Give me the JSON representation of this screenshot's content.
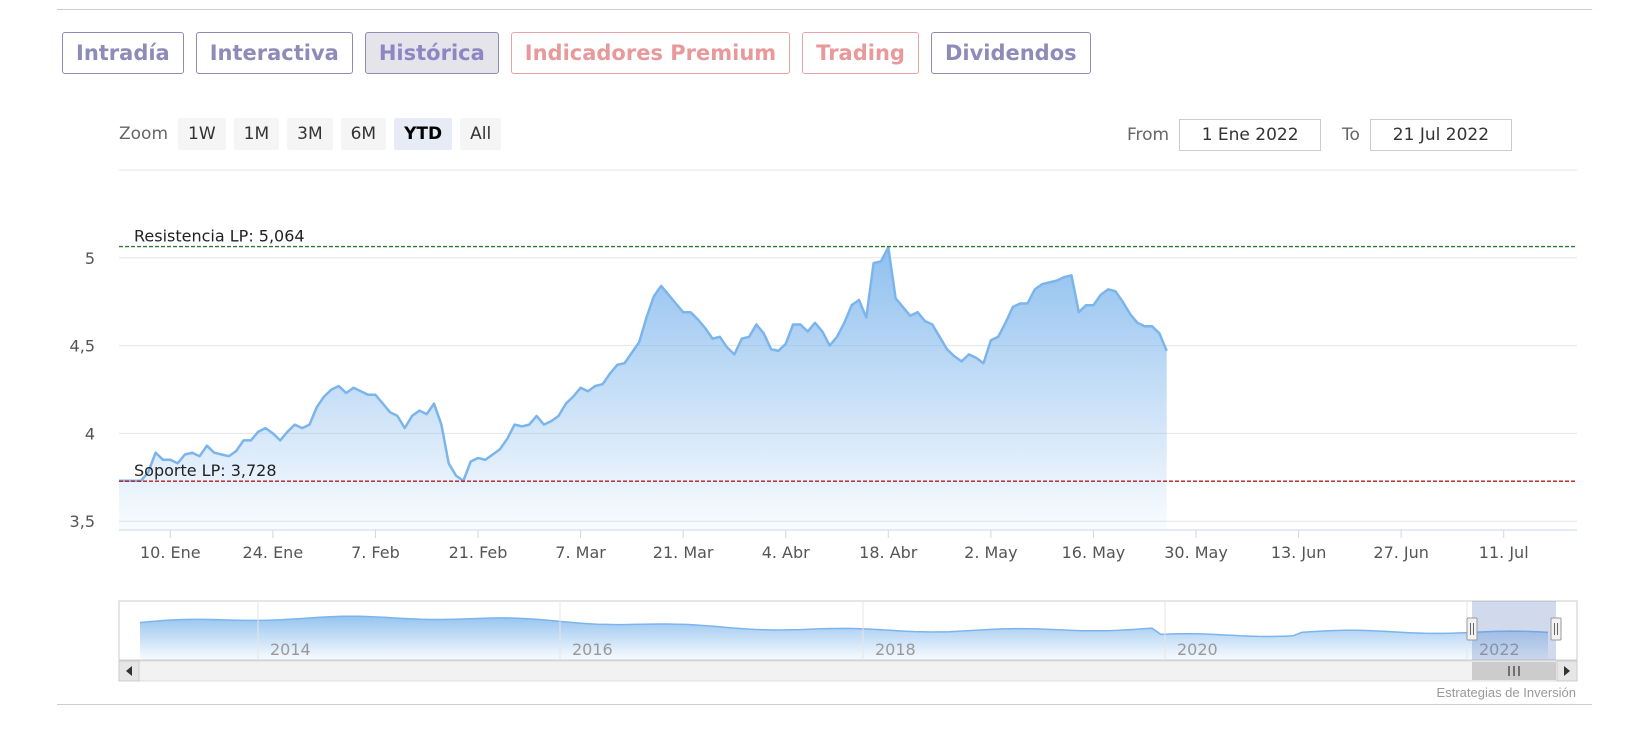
{
  "tabs": [
    {
      "label": "Intradía",
      "style": "normal"
    },
    {
      "label": "Interactiva",
      "style": "normal"
    },
    {
      "label": "Histórica",
      "style": "active"
    },
    {
      "label": "Indicadores Premium",
      "style": "premium"
    },
    {
      "label": "Trading",
      "style": "premium"
    },
    {
      "label": "Dividendos",
      "style": "normal"
    }
  ],
  "zoom": {
    "label": "Zoom",
    "buttons": [
      {
        "label": "1W",
        "selected": false
      },
      {
        "label": "1M",
        "selected": false
      },
      {
        "label": "3M",
        "selected": false
      },
      {
        "label": "6M",
        "selected": false
      },
      {
        "label": "YTD",
        "selected": true
      },
      {
        "label": "All",
        "selected": false
      }
    ]
  },
  "range": {
    "from_label": "From",
    "from_value": "1 Ene 2022",
    "to_label": "To",
    "to_value": "21 Jul 2022"
  },
  "colors": {
    "series": "#7cb5ec",
    "resistance": "#2e7d32",
    "support": "#b71c1c"
  },
  "credits": "Estrategias de Inversión",
  "chart_data": {
    "type": "area",
    "x_start": "2022-01-03",
    "x_end": "2022-07-21",
    "y_ticks": [
      {
        "value": 3.5,
        "label": "3,5"
      },
      {
        "value": 4,
        "label": "4"
      },
      {
        "value": 4.5,
        "label": "4,5"
      },
      {
        "value": 5,
        "label": "5"
      }
    ],
    "x_ticks": [
      {
        "date": "2022-01-10",
        "label": "10. Ene"
      },
      {
        "date": "2022-01-24",
        "label": "24. Ene"
      },
      {
        "date": "2022-02-07",
        "label": "7. Feb"
      },
      {
        "date": "2022-02-21",
        "label": "21. Feb"
      },
      {
        "date": "2022-03-07",
        "label": "7. Mar"
      },
      {
        "date": "2022-03-21",
        "label": "21. Mar"
      },
      {
        "date": "2022-04-04",
        "label": "4. Abr"
      },
      {
        "date": "2022-04-18",
        "label": "18. Abr"
      },
      {
        "date": "2022-05-02",
        "label": "2. May"
      },
      {
        "date": "2022-05-16",
        "label": "16. May"
      },
      {
        "date": "2022-05-30",
        "label": "30. May"
      },
      {
        "date": "2022-06-13",
        "label": "13. Jun"
      },
      {
        "date": "2022-06-27",
        "label": "27. Jun"
      },
      {
        "date": "2022-07-11",
        "label": "11. Jul"
      }
    ],
    "plot_lines": [
      {
        "value": 5.064,
        "label": "Resistencia LP: 5,064",
        "color": "#2e7d32"
      },
      {
        "value": 3.728,
        "label": "Soporte LP: 3,728",
        "color": "#b71c1c"
      }
    ],
    "series": [
      {
        "points": [
          [
            "2022-01-03",
            3.73
          ],
          [
            "2022-01-04",
            3.73
          ],
          [
            "2022-01-05",
            3.73
          ],
          [
            "2022-01-06",
            3.73
          ],
          [
            "2022-01-07",
            3.78
          ],
          [
            "2022-01-08",
            3.89
          ],
          [
            "2022-01-09",
            3.85
          ],
          [
            "2022-01-10",
            3.85
          ],
          [
            "2022-01-11",
            3.83
          ],
          [
            "2022-01-12",
            3.88
          ],
          [
            "2022-01-13",
            3.89
          ],
          [
            "2022-01-14",
            3.87
          ],
          [
            "2022-01-15",
            3.93
          ],
          [
            "2022-01-16",
            3.89
          ],
          [
            "2022-01-17",
            3.88
          ],
          [
            "2022-01-18",
            3.87
          ],
          [
            "2022-01-19",
            3.9
          ],
          [
            "2022-01-20",
            3.96
          ],
          [
            "2022-01-21",
            3.96
          ],
          [
            "2022-01-22",
            4.01
          ],
          [
            "2022-01-23",
            4.03
          ],
          [
            "2022-01-24",
            4.0
          ],
          [
            "2022-01-25",
            3.96
          ],
          [
            "2022-01-26",
            4.01
          ],
          [
            "2022-01-27",
            4.05
          ],
          [
            "2022-01-28",
            4.03
          ],
          [
            "2022-01-29",
            4.05
          ],
          [
            "2022-01-30",
            4.15
          ],
          [
            "2022-01-31",
            4.21
          ],
          [
            "2022-02-01",
            4.25
          ],
          [
            "2022-02-02",
            4.27
          ],
          [
            "2022-02-03",
            4.23
          ],
          [
            "2022-02-04",
            4.26
          ],
          [
            "2022-02-05",
            4.24
          ],
          [
            "2022-02-06",
            4.22
          ],
          [
            "2022-02-07",
            4.22
          ],
          [
            "2022-02-08",
            4.17
          ],
          [
            "2022-02-09",
            4.12
          ],
          [
            "2022-02-10",
            4.1
          ],
          [
            "2022-02-11",
            4.03
          ],
          [
            "2022-02-12",
            4.1
          ],
          [
            "2022-02-13",
            4.13
          ],
          [
            "2022-02-14",
            4.11
          ],
          [
            "2022-02-15",
            4.17
          ],
          [
            "2022-02-16",
            4.05
          ],
          [
            "2022-02-17",
            3.83
          ],
          [
            "2022-02-18",
            3.76
          ],
          [
            "2022-02-19",
            3.73
          ],
          [
            "2022-02-20",
            3.84
          ],
          [
            "2022-02-21",
            3.86
          ],
          [
            "2022-02-22",
            3.85
          ],
          [
            "2022-02-23",
            3.88
          ],
          [
            "2022-02-24",
            3.91
          ],
          [
            "2022-02-25",
            3.97
          ],
          [
            "2022-02-26",
            4.05
          ],
          [
            "2022-02-27",
            4.04
          ],
          [
            "2022-02-28",
            4.05
          ],
          [
            "2022-03-01",
            4.1
          ],
          [
            "2022-03-02",
            4.05
          ],
          [
            "2022-03-03",
            4.07
          ],
          [
            "2022-03-04",
            4.1
          ],
          [
            "2022-03-05",
            4.17
          ],
          [
            "2022-03-06",
            4.21
          ],
          [
            "2022-03-07",
            4.26
          ],
          [
            "2022-03-08",
            4.24
          ],
          [
            "2022-03-09",
            4.27
          ],
          [
            "2022-03-10",
            4.28
          ],
          [
            "2022-03-11",
            4.34
          ],
          [
            "2022-03-12",
            4.39
          ],
          [
            "2022-03-13",
            4.4
          ],
          [
            "2022-03-14",
            4.46
          ],
          [
            "2022-03-15",
            4.52
          ],
          [
            "2022-03-16",
            4.66
          ],
          [
            "2022-03-17",
            4.78
          ],
          [
            "2022-03-18",
            4.84
          ],
          [
            "2022-03-19",
            4.79
          ],
          [
            "2022-03-20",
            4.74
          ],
          [
            "2022-03-21",
            4.69
          ],
          [
            "2022-03-22",
            4.69
          ],
          [
            "2022-03-23",
            4.65
          ],
          [
            "2022-03-24",
            4.6
          ],
          [
            "2022-03-25",
            4.54
          ],
          [
            "2022-03-26",
            4.55
          ],
          [
            "2022-03-27",
            4.49
          ],
          [
            "2022-03-28",
            4.45
          ],
          [
            "2022-03-29",
            4.54
          ],
          [
            "2022-03-30",
            4.55
          ],
          [
            "2022-03-31",
            4.62
          ],
          [
            "2022-04-01",
            4.57
          ],
          [
            "2022-04-02",
            4.48
          ],
          [
            "2022-04-03",
            4.47
          ],
          [
            "2022-04-04",
            4.51
          ],
          [
            "2022-04-05",
            4.62
          ],
          [
            "2022-04-06",
            4.62
          ],
          [
            "2022-04-07",
            4.58
          ],
          [
            "2022-04-08",
            4.63
          ],
          [
            "2022-04-09",
            4.58
          ],
          [
            "2022-04-10",
            4.5
          ],
          [
            "2022-04-11",
            4.55
          ],
          [
            "2022-04-12",
            4.63
          ],
          [
            "2022-04-13",
            4.73
          ],
          [
            "2022-04-14",
            4.76
          ],
          [
            "2022-04-15",
            4.66
          ],
          [
            "2022-04-16",
            4.97
          ],
          [
            "2022-04-17",
            4.98
          ],
          [
            "2022-04-18",
            5.06
          ],
          [
            "2022-04-19",
            4.77
          ],
          [
            "2022-04-20",
            4.72
          ],
          [
            "2022-04-21",
            4.67
          ],
          [
            "2022-04-22",
            4.69
          ],
          [
            "2022-04-23",
            4.64
          ],
          [
            "2022-04-24",
            4.62
          ],
          [
            "2022-04-25",
            4.55
          ],
          [
            "2022-04-26",
            4.48
          ],
          [
            "2022-04-27",
            4.44
          ],
          [
            "2022-04-28",
            4.41
          ],
          [
            "2022-04-29",
            4.45
          ],
          [
            "2022-04-30",
            4.43
          ],
          [
            "2022-05-01",
            4.4
          ],
          [
            "2022-05-02",
            4.53
          ],
          [
            "2022-05-03",
            4.55
          ],
          [
            "2022-05-04",
            4.63
          ],
          [
            "2022-05-05",
            4.72
          ],
          [
            "2022-05-06",
            4.74
          ],
          [
            "2022-05-07",
            4.74
          ],
          [
            "2022-05-08",
            4.82
          ],
          [
            "2022-05-09",
            4.85
          ],
          [
            "2022-05-10",
            4.86
          ],
          [
            "2022-05-11",
            4.87
          ],
          [
            "2022-05-12",
            4.89
          ],
          [
            "2022-05-13",
            4.9
          ],
          [
            "2022-05-14",
            4.69
          ],
          [
            "2022-05-15",
            4.73
          ],
          [
            "2022-05-16",
            4.73
          ],
          [
            "2022-05-17",
            4.79
          ],
          [
            "2022-05-18",
            4.82
          ],
          [
            "2022-05-19",
            4.81
          ],
          [
            "2022-05-20",
            4.75
          ],
          [
            "2022-05-21",
            4.68
          ],
          [
            "2022-05-22",
            4.63
          ],
          [
            "2022-05-23",
            4.61
          ],
          [
            "2022-05-24",
            4.61
          ],
          [
            "2022-05-25",
            4.57
          ],
          [
            "2022-05-26",
            4.47
          ]
        ]
      }
    ],
    "navigator": {
      "x_labels": [
        "2014",
        "2016",
        "2018",
        "2020",
        "2022"
      ]
    }
  }
}
